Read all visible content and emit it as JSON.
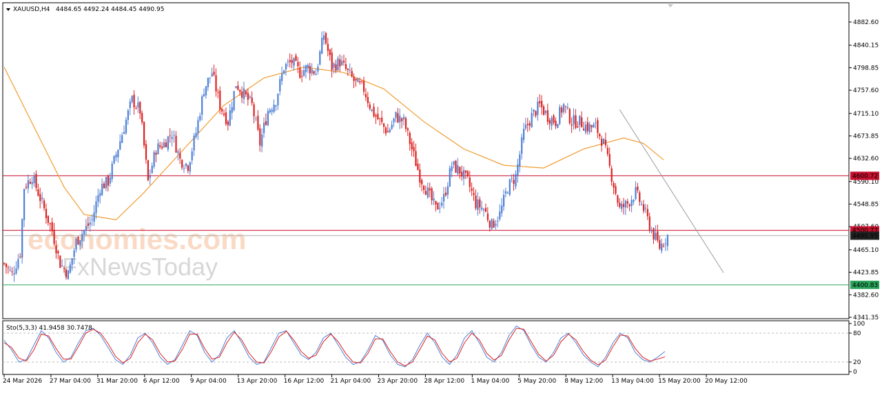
{
  "header": {
    "symbol": "XAUUSD,H4",
    "ohlc": "4484.65 4492.24 4484.45 4490.95"
  },
  "watermark": {
    "line1": "economies.com",
    "line2": "FxNewsToday"
  },
  "colors": {
    "bull": "#4c7fd6",
    "bear": "#dd1f1f",
    "ma": "#f29a2e",
    "resistance": "#c8102e",
    "support": "#29a45a",
    "current": "#222222",
    "trendline": "#9b9b9b",
    "stoch_main": "#4c7fd6",
    "stoch_signal": "#dd1f1f"
  },
  "chart_data": [
    {
      "type": "candlestick",
      "title": "XAUUSD,H4",
      "y_ticks": [
        "4882.60",
        "4840.15",
        "4798.85",
        "4757.60",
        "4715.10",
        "4673.85",
        "4632.60",
        "4590.10",
        "4548.85",
        "4507.60",
        "4465.10",
        "4423.85",
        "4382.60",
        "4341.35"
      ],
      "ylim": [
        4341.35,
        4882.6
      ],
      "x_labels": [
        "24 Mar 2026",
        "27 Mar 04:00",
        "31 Mar 20:00",
        "6 Apr 12:00",
        "9 Apr 04:00",
        "13 Apr 20:00",
        "16 Apr 12:00",
        "21 Apr 04:00",
        "23 Apr 20:00",
        "28 Apr 12:00",
        "1 May 04:00",
        "5 May 20:00",
        "8 May 12:00",
        "13 May 04:00",
        "15 May 20:00",
        "20 May 12:00"
      ],
      "close_path": [
        [
          0,
          4440
        ],
        [
          4,
          4420
        ],
        [
          8,
          4460
        ],
        [
          10,
          4580
        ],
        [
          14,
          4600
        ],
        [
          18,
          4560
        ],
        [
          24,
          4500
        ],
        [
          28,
          4440
        ],
        [
          32,
          4420
        ],
        [
          36,
          4480
        ],
        [
          40,
          4500
        ],
        [
          44,
          4520
        ],
        [
          48,
          4580
        ],
        [
          52,
          4590
        ],
        [
          56,
          4640
        ],
        [
          60,
          4690
        ],
        [
          64,
          4740
        ],
        [
          68,
          4720
        ],
        [
          72,
          4590
        ],
        [
          76,
          4650
        ],
        [
          80,
          4660
        ],
        [
          84,
          4680
        ],
        [
          88,
          4630
        ],
        [
          92,
          4620
        ],
        [
          96,
          4680
        ],
        [
          100,
          4760
        ],
        [
          104,
          4790
        ],
        [
          108,
          4730
        ],
        [
          112,
          4700
        ],
        [
          116,
          4770
        ],
        [
          120,
          4750
        ],
        [
          124,
          4730
        ],
        [
          128,
          4660
        ],
        [
          132,
          4720
        ],
        [
          136,
          4740
        ],
        [
          140,
          4800
        ],
        [
          144,
          4810
        ],
        [
          148,
          4790
        ],
        [
          152,
          4800
        ],
        [
          156,
          4790
        ],
        [
          160,
          4860
        ],
        [
          164,
          4800
        ],
        [
          168,
          4810
        ],
        [
          172,
          4790
        ],
        [
          176,
          4770
        ],
        [
          180,
          4760
        ],
        [
          184,
          4720
        ],
        [
          188,
          4700
        ],
        [
          192,
          4680
        ],
        [
          196,
          4710
        ],
        [
          200,
          4700
        ],
        [
          204,
          4650
        ],
        [
          208,
          4600
        ],
        [
          212,
          4570
        ],
        [
          216,
          4540
        ],
        [
          220,
          4560
        ],
        [
          224,
          4620
        ],
        [
          228,
          4610
        ],
        [
          232,
          4590
        ],
        [
          236,
          4550
        ],
        [
          240,
          4540
        ],
        [
          244,
          4510
        ],
        [
          248,
          4530
        ],
        [
          252,
          4580
        ],
        [
          256,
          4600
        ],
        [
          260,
          4680
        ],
        [
          264,
          4710
        ],
        [
          268,
          4730
        ],
        [
          272,
          4710
        ],
        [
          276,
          4700
        ],
        [
          280,
          4730
        ],
        [
          284,
          4700
        ],
        [
          288,
          4700
        ],
        [
          292,
          4690
        ],
        [
          296,
          4690
        ],
        [
          300,
          4660
        ],
        [
          304,
          4600
        ],
        [
          308,
          4540
        ],
        [
          312,
          4550
        ],
        [
          316,
          4570
        ],
        [
          320,
          4540
        ],
        [
          324,
          4500
        ],
        [
          328,
          4470
        ],
        [
          332,
          4490.95
        ]
      ],
      "levels": {
        "resistance_1": {
          "value": 4600.72,
          "label": "4600.72"
        },
        "resistance_2": {
          "value": 4500.77,
          "label": "4500.77"
        },
        "current": {
          "value": 4490.95,
          "label": "4490.95"
        },
        "support": {
          "value": 4400.83,
          "label": "4400.83"
        }
      },
      "moving_average": [
        [
          0,
          4800
        ],
        [
          30,
          4580
        ],
        [
          40,
          4530
        ],
        [
          56,
          4520
        ],
        [
          70,
          4570
        ],
        [
          90,
          4650
        ],
        [
          110,
          4730
        ],
        [
          130,
          4780
        ],
        [
          150,
          4800
        ],
        [
          170,
          4790
        ],
        [
          190,
          4760
        ],
        [
          210,
          4700
        ],
        [
          230,
          4650
        ],
        [
          250,
          4620
        ],
        [
          270,
          4615
        ],
        [
          290,
          4650
        ],
        [
          310,
          4670
        ],
        [
          320,
          4660
        ],
        [
          330,
          4630
        ]
      ],
      "trendline": [
        [
          308,
          4722
        ],
        [
          360,
          4423
        ]
      ]
    },
    {
      "type": "line",
      "title": "Sto(5,3,3) 41.9458 30.7478",
      "y_ticks": [
        "100",
        "80",
        "20",
        "0"
      ],
      "ylim": [
        0,
        100
      ],
      "levels": [
        80,
        20
      ],
      "series": [
        {
          "name": "Sto(5,3,3) 41.9458",
          "values": [
            65,
            45,
            20,
            25,
            55,
            85,
            70,
            40,
            20,
            30,
            60,
            85,
            90,
            75,
            50,
            25,
            15,
            35,
            70,
            80,
            60,
            30,
            15,
            25,
            55,
            85,
            75,
            40,
            20,
            35,
            70,
            85,
            60,
            30,
            15,
            20,
            50,
            80,
            85,
            60,
            35,
            25,
            40,
            70,
            80,
            55,
            30,
            15,
            20,
            45,
            75,
            65,
            35,
            15,
            10,
            25,
            55,
            80,
            60,
            30,
            15,
            35,
            70,
            85,
            60,
            30,
            20,
            40,
            75,
            95,
            85,
            55,
            30,
            20,
            40,
            70,
            80,
            60,
            35,
            20,
            10,
            30,
            60,
            80,
            70,
            40,
            25,
            20,
            30,
            41.95
          ]
        },
        {
          "name": "30.7478",
          "values": [
            60,
            50,
            28,
            22,
            45,
            78,
            74,
            48,
            26,
            26,
            52,
            80,
            88,
            80,
            58,
            32,
            18,
            28,
            60,
            78,
            66,
            38,
            20,
            22,
            46,
            78,
            78,
            48,
            26,
            30,
            60,
            82,
            66,
            38,
            20,
            18,
            42,
            72,
            84,
            66,
            42,
            28,
            34,
            62,
            78,
            62,
            38,
            20,
            18,
            38,
            68,
            68,
            42,
            20,
            12,
            20,
            46,
            74,
            66,
            38,
            20,
            28,
            60,
            80,
            66,
            38,
            24,
            34,
            66,
            90,
            88,
            62,
            36,
            22,
            34,
            62,
            78,
            66,
            42,
            24,
            14,
            24,
            52,
            76,
            74,
            48,
            30,
            22,
            26,
            30.75
          ]
        }
      ]
    }
  ]
}
